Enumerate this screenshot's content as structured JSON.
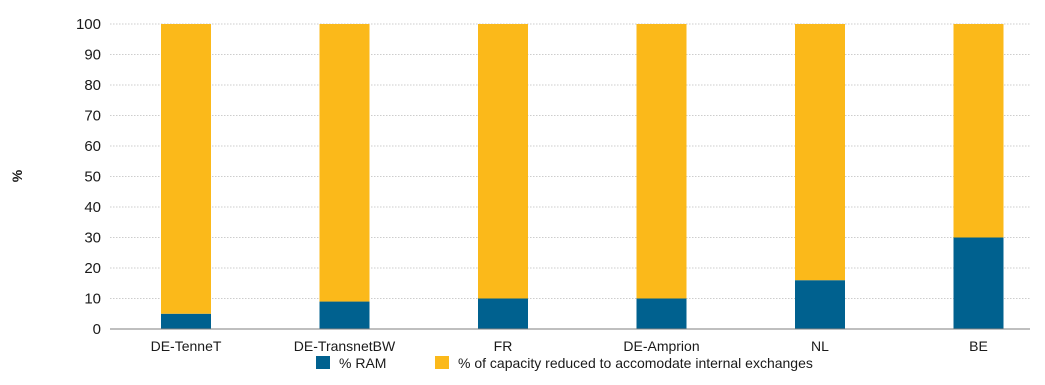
{
  "chart_data": {
    "type": "bar",
    "stacked": true,
    "categories": [
      "DE-TenneT",
      "DE-TransnetBW",
      "FR",
      "DE-Amprion",
      "NL",
      "BE"
    ],
    "series": [
      {
        "name": "% RAM",
        "color": "#00618f",
        "values": [
          5,
          9,
          10,
          10,
          16,
          30
        ]
      },
      {
        "name": "% of capacity reduced to accomodate internal exchanges",
        "color": "#fbb91a",
        "values": [
          95,
          91,
          90,
          90,
          84,
          70
        ]
      }
    ],
    "title": "",
    "xlabel": "",
    "ylabel": "%",
    "ylim": [
      0,
      100
    ],
    "yticks": [
      "0",
      "10",
      "20",
      "30",
      "40",
      "50",
      "60",
      "70",
      "80",
      "90",
      "100"
    ],
    "grid": true,
    "legend_position": "bottom"
  }
}
